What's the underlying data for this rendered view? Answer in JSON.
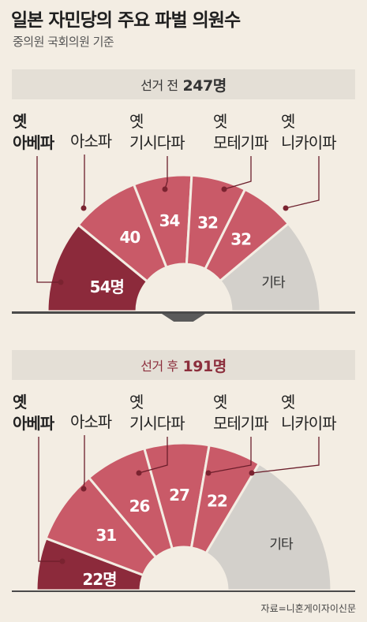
{
  "title": "일본 자민당의 주요 파벌 의원수",
  "subtitle": "중의원 국회의원 기준",
  "source": "자료=니혼게이자이신문",
  "colors": {
    "abe": "#8c2a3b",
    "others": "#c95a68",
    "etc": "#d3d0cb",
    "separator": "#f3ede3",
    "leader": "#6b1e2b",
    "dot": "#7a2330"
  },
  "chart_data": [
    {
      "type": "pie",
      "title_prefix": "선거 전",
      "title_value": "247명",
      "total": 247,
      "categories": [
        "아베파",
        "아소파",
        "기시다파",
        "모테기파",
        "니카이파",
        "기타"
      ],
      "labels": [
        "옛\n아베파",
        "아소파",
        "옛\n기시다파",
        "옛\n모테기파",
        "옛\n니카이파",
        "기타"
      ],
      "values": [
        54,
        40,
        34,
        32,
        32,
        55
      ],
      "value_labels": [
        "54명",
        "40",
        "34",
        "32",
        "32",
        "기타"
      ]
    },
    {
      "type": "pie",
      "title_prefix": "선거 후",
      "title_value": "191명",
      "total": 191,
      "categories": [
        "아베파",
        "아소파",
        "기시다파",
        "모테기파",
        "니카이파",
        "기타"
      ],
      "labels": [
        "옛\n아베파",
        "아소파",
        "옛\n기시다파",
        "옛\n모테기파",
        "옛\n니카이파",
        "기타"
      ],
      "values": [
        22,
        31,
        26,
        27,
        22,
        63
      ],
      "value_labels": [
        "22명",
        "31",
        "26",
        "27",
        "22",
        "기타"
      ]
    }
  ]
}
